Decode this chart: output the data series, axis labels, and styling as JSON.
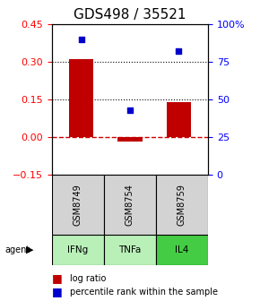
{
  "title": "GDS498 / 35521",
  "samples": [
    "GSM8749",
    "GSM8754",
    "GSM8759"
  ],
  "agents": [
    "IFNg",
    "TNFa",
    "IL4"
  ],
  "log_ratios": [
    0.31,
    -0.018,
    0.14
  ],
  "percentile_ranks": [
    0.9,
    0.43,
    0.82
  ],
  "ylim_left": [
    -0.15,
    0.45
  ],
  "ylim_right": [
    0.0,
    1.0
  ],
  "yticks_left": [
    -0.15,
    0.0,
    0.15,
    0.3,
    0.45
  ],
  "yticks_right": [
    0.0,
    0.25,
    0.5,
    0.75,
    1.0
  ],
  "ytick_labels_right": [
    "0",
    "25",
    "50",
    "75",
    "100%"
  ],
  "bar_color": "#c00000",
  "scatter_color": "#0000cc",
  "sample_box_color": "#d3d3d3",
  "agent_colors": [
    "#b8f0b8",
    "#b8f0b8",
    "#44cc44"
  ],
  "hline_zero_color": "#cc0000",
  "hline_dotted_color": "#000000",
  "title_fontsize": 11,
  "tick_fontsize": 8,
  "legend_fontsize": 7,
  "bar_width": 0.5
}
